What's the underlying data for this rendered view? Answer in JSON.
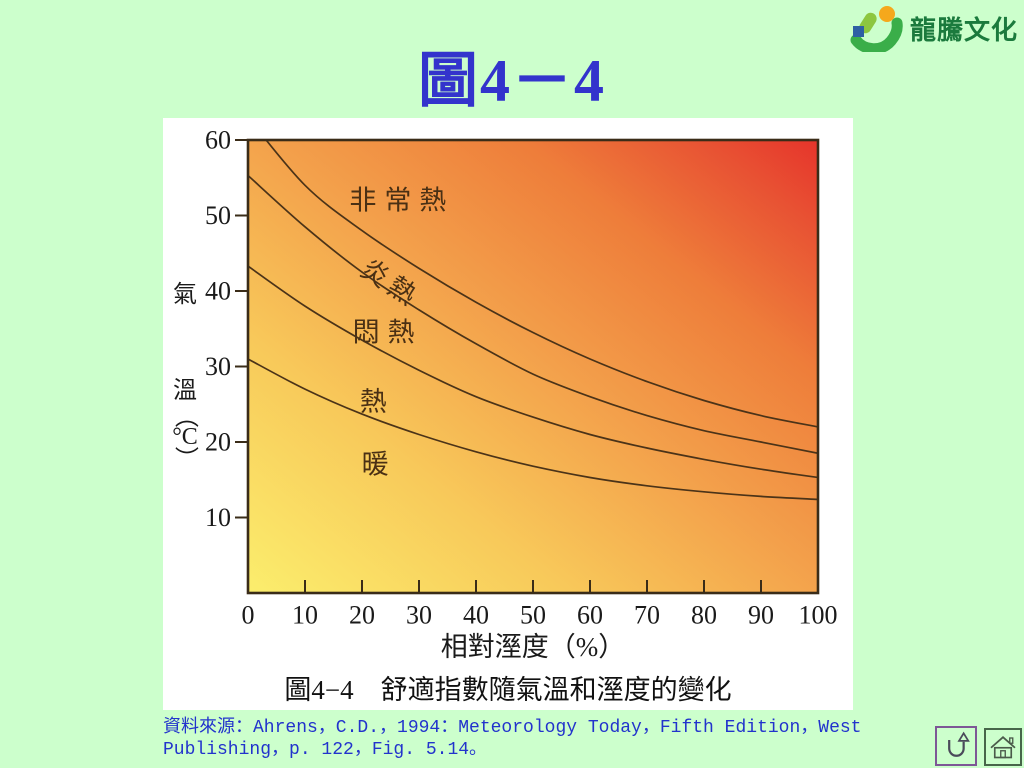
{
  "slide": {
    "title": "圖4－4",
    "background_color": "#ccffcc",
    "title_color": "#3333cc"
  },
  "logo": {
    "text": "龍騰文化",
    "text_color": "#1b7a3d",
    "icon": "sprouting-person-logo-icon"
  },
  "source": {
    "line1": "資料來源：Ahrens，C.D.，1994：Meteorology Today，Fifth Edition，West",
    "line2": "Publishing，p. 122，Fig. 5.14。",
    "color": "#2233cc"
  },
  "nav": {
    "return_icon": "u-turn-arrow-icon",
    "home_icon": "house-icon"
  },
  "chart_data": {
    "type": "line",
    "caption": "圖4−4　舒適指數隨氣溫和溼度的變化",
    "xlabel": "相對溼度（%）",
    "ylabel": "氣溫（°C）",
    "xlim": [
      0,
      100
    ],
    "ylim": [
      0,
      60
    ],
    "xticks": [
      0,
      10,
      20,
      30,
      40,
      50,
      60,
      70,
      80,
      90,
      100
    ],
    "yticks": [
      60,
      50,
      40,
      30,
      20,
      10
    ],
    "grid": false,
    "legend": "none",
    "background_gradient": {
      "direction": "bottom-left to top-right",
      "stops": [
        "#fbee6d",
        "#f8c95a",
        "#f3a04b",
        "#ee7d3a",
        "#e85233",
        "#e6342b"
      ]
    },
    "x": [
      0,
      10,
      20,
      30,
      40,
      50,
      60,
      70,
      80,
      90,
      100
    ],
    "series": [
      {
        "name": "炎熱/非常熱界線",
        "zone_above": "非常熱",
        "values": [
          63,
          54,
          48,
          43,
          38.5,
          34.5,
          31,
          28,
          25.5,
          23.5,
          22
        ]
      },
      {
        "name": "悶熱/炎熱界線",
        "zone_above": "炎熱",
        "values": [
          55.3,
          48.5,
          42.5,
          37.5,
          33,
          29,
          26,
          23.5,
          21.5,
          20,
          18.5
        ]
      },
      {
        "name": "熱/悶熱界線",
        "zone_above": "悶熱",
        "values": [
          43.3,
          38,
          33.5,
          29.5,
          26,
          23.3,
          21,
          19.2,
          17.7,
          16.4,
          15.3
        ]
      },
      {
        "name": "暖/熱界線",
        "zone_above": "熱",
        "values": [
          31,
          27,
          23.7,
          21,
          18.7,
          16.8,
          15.3,
          14.2,
          13.4,
          12.8,
          12.4
        ]
      }
    ],
    "zones": [
      {
        "label": "非常熱",
        "x": 27,
        "y": 52,
        "rotate": 0,
        "spacing": 8
      },
      {
        "label": "炎熱",
        "x": 25,
        "y": 41,
        "rotate": 33,
        "spacing": 5
      },
      {
        "label": "悶熱",
        "x": 24.5,
        "y": 34.5,
        "rotate": 0,
        "spacing": 8
      },
      {
        "label": "熱",
        "x": 22,
        "y": 25.3,
        "rotate": 0,
        "spacing": 0
      },
      {
        "label": "暖",
        "x": 22.3,
        "y": 17,
        "rotate": 0,
        "spacing": 0
      }
    ],
    "curve_color": "#4b3318",
    "label_color": "#4a3014"
  }
}
